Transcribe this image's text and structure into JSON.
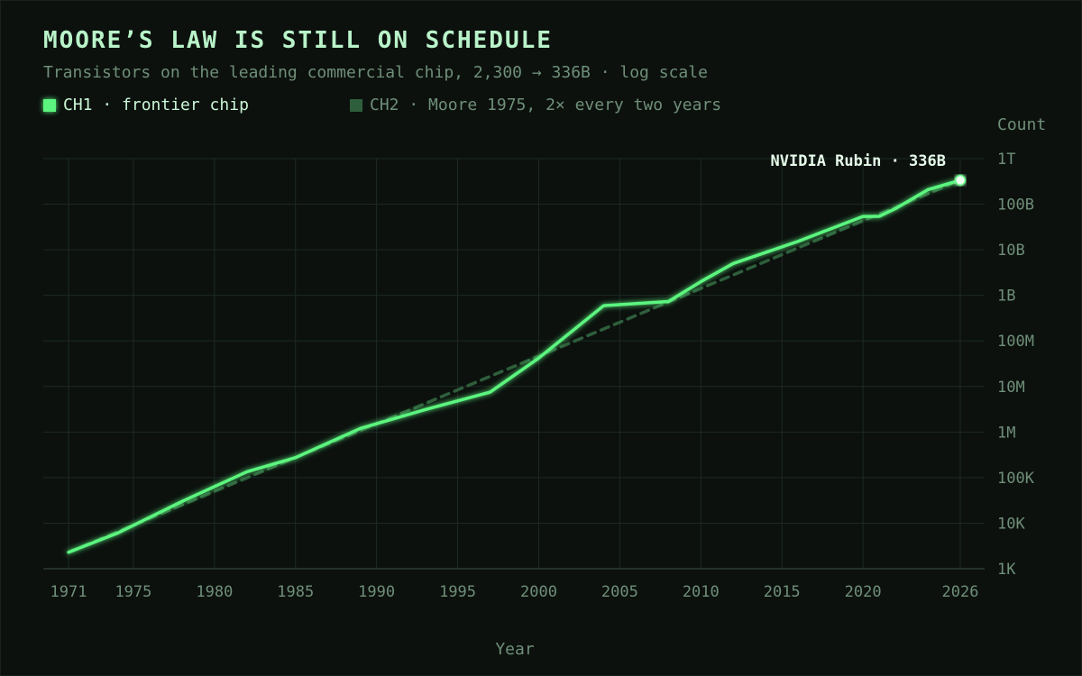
{
  "title": "MOORE’S LAW IS STILL ON SCHEDULE",
  "subtitle": "Transistors on the leading commercial chip, 2,300 → 336B · log scale",
  "legend": [
    {
      "label": "CH1 · frontier chip",
      "color": "#5cf57f"
    },
    {
      "label": "CH2 · Moore 1975, 2× every two years",
      "color": "#2e5e3b"
    }
  ],
  "colors": {
    "background": "#0c110e",
    "grid": "#1d2a22",
    "series1": "#5cf57f",
    "series2": "#2e5e3b",
    "text": "#6f8f78"
  },
  "chart_data": {
    "type": "line",
    "title": "MOORE’S LAW IS STILL ON SCHEDULE",
    "subtitle": "Transistors on the leading commercial chip, 2,300 → 336B · log scale",
    "xlabel": "Year",
    "ylabel": "Count",
    "xlim": [
      1971,
      2026
    ],
    "ylim": [
      1000,
      1000000000000
    ],
    "yscale": "log",
    "grid": true,
    "legend_position": "top-left",
    "x_ticks": [
      1971,
      1975,
      1980,
      1985,
      1990,
      1995,
      2000,
      2005,
      2010,
      2015,
      2020,
      2026
    ],
    "y_ticks": [
      {
        "value": 1000,
        "label": "1K"
      },
      {
        "value": 10000,
        "label": "10K"
      },
      {
        "value": 100000,
        "label": "100K"
      },
      {
        "value": 1000000,
        "label": "1M"
      },
      {
        "value": 10000000,
        "label": "10M"
      },
      {
        "value": 100000000,
        "label": "100M"
      },
      {
        "value": 1000000000,
        "label": "1B"
      },
      {
        "value": 10000000000,
        "label": "10B"
      },
      {
        "value": 100000000000,
        "label": "100B"
      },
      {
        "value": 1000000000000,
        "label": "1T"
      }
    ],
    "series": [
      {
        "name": "CH1 · frontier chip",
        "style": "solid",
        "x": [
          1971,
          1974,
          1978,
          1982,
          1985,
          1989,
          1993,
          1997,
          2000,
          2004,
          2008,
          2010,
          2012,
          2016,
          2020,
          2021,
          2022,
          2024,
          2026
        ],
        "y": [
          2300,
          6000,
          30000,
          134000,
          275000,
          1200000,
          3100000,
          7500000,
          42000000,
          592000000,
          731000000,
          2000000000,
          5000000000,
          15300000000,
          54000000000,
          54200000000,
          80000000000,
          208000000000,
          336000000000
        ]
      },
      {
        "name": "CH2 · Moore 1975, 2× every two years",
        "style": "dashed",
        "x": [
          1971,
          2026
        ],
        "y": [
          2300,
          336000000000
        ]
      }
    ],
    "annotations": [
      {
        "text": "NVIDIA Rubin · 336B",
        "x": 2026,
        "y": 336000000000
      }
    ]
  }
}
